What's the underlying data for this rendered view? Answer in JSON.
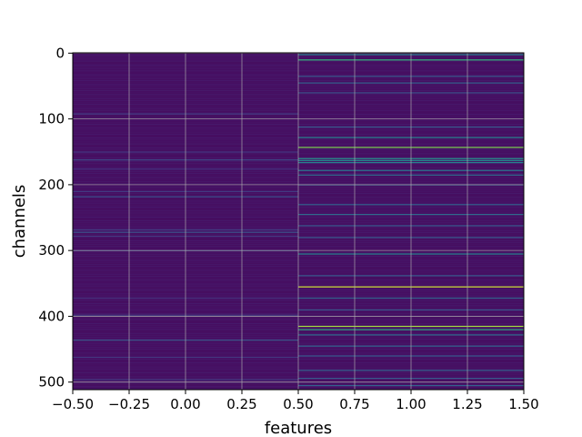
{
  "chart_data": {
    "type": "heatmap",
    "xlabel": "features",
    "ylabel": "channels",
    "x_categories": [
      0,
      1
    ],
    "xlim": [
      -0.5,
      1.5
    ],
    "ylim": [
      511.5,
      -0.5
    ],
    "rows": 512,
    "x_ticks": [
      -0.5,
      -0.25,
      0.0,
      0.25,
      0.5,
      0.75,
      1.0,
      1.25,
      1.5
    ],
    "x_tick_labels": [
      "−0.50",
      "−0.25",
      "0.00",
      "0.25",
      "0.50",
      "0.75",
      "1.00",
      "1.25",
      "1.50"
    ],
    "y_ticks": [
      0,
      100,
      200,
      300,
      400,
      500
    ],
    "y_tick_labels": [
      "0",
      "100",
      "200",
      "300",
      "400",
      "500"
    ],
    "grid": true,
    "colormap": "viridis",
    "value_range": [
      0,
      1
    ],
    "background_level": 0.05,
    "bright_rows": {
      "feature_0": [
        {
          "row": 92,
          "value": 0.22
        },
        {
          "row": 150,
          "value": 0.2
        },
        {
          "row": 162,
          "value": 0.28
        },
        {
          "row": 176,
          "value": 0.18
        },
        {
          "row": 210,
          "value": 0.22
        },
        {
          "row": 218,
          "value": 0.3
        },
        {
          "row": 268,
          "value": 0.22
        },
        {
          "row": 272,
          "value": 0.32
        },
        {
          "row": 278,
          "value": 0.2
        },
        {
          "row": 300,
          "value": 0.22
        },
        {
          "row": 372,
          "value": 0.18
        },
        {
          "row": 398,
          "value": 0.22
        },
        {
          "row": 436,
          "value": 0.32
        },
        {
          "row": 462,
          "value": 0.2
        },
        {
          "row": 496,
          "value": 0.2
        }
      ],
      "feature_1": [
        {
          "row": 2,
          "value": 0.55
        },
        {
          "row": 10,
          "value": 0.75
        },
        {
          "row": 35,
          "value": 0.35
        },
        {
          "row": 45,
          "value": 0.4
        },
        {
          "row": 60,
          "value": 0.32
        },
        {
          "row": 112,
          "value": 0.35
        },
        {
          "row": 128,
          "value": 0.55
        },
        {
          "row": 143,
          "value": 0.85
        },
        {
          "row": 160,
          "value": 0.65
        },
        {
          "row": 163,
          "value": 0.6
        },
        {
          "row": 166,
          "value": 0.55
        },
        {
          "row": 178,
          "value": 0.5
        },
        {
          "row": 185,
          "value": 0.45
        },
        {
          "row": 200,
          "value": 0.35
        },
        {
          "row": 230,
          "value": 0.4
        },
        {
          "row": 245,
          "value": 0.45
        },
        {
          "row": 262,
          "value": 0.35
        },
        {
          "row": 280,
          "value": 0.35
        },
        {
          "row": 305,
          "value": 0.55
        },
        {
          "row": 338,
          "value": 0.35
        },
        {
          "row": 355,
          "value": 0.95
        },
        {
          "row": 372,
          "value": 0.4
        },
        {
          "row": 390,
          "value": 0.35
        },
        {
          "row": 415,
          "value": 0.9
        },
        {
          "row": 420,
          "value": 0.7
        },
        {
          "row": 428,
          "value": 0.45
        },
        {
          "row": 445,
          "value": 0.4
        },
        {
          "row": 460,
          "value": 0.35
        },
        {
          "row": 482,
          "value": 0.4
        },
        {
          "row": 494,
          "value": 0.35
        },
        {
          "row": 505,
          "value": 0.4
        }
      ]
    }
  }
}
